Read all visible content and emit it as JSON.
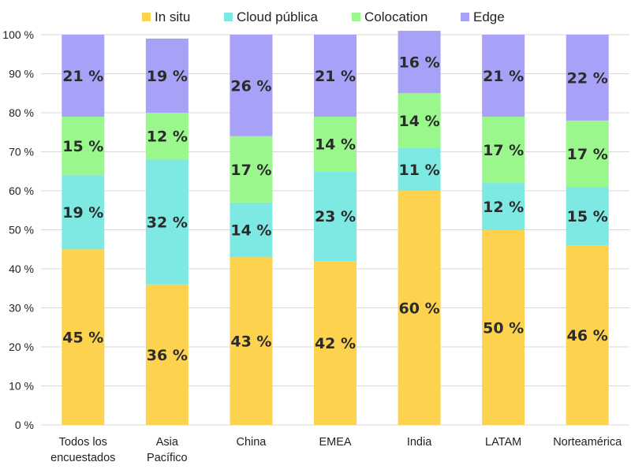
{
  "chart_data": {
    "type": "bar",
    "stacked": true,
    "categories": [
      [
        "Todos los",
        "encuestados"
      ],
      [
        "Asia",
        "Pacífico"
      ],
      [
        "China"
      ],
      [
        "EMEA"
      ],
      [
        "India"
      ],
      [
        "LATAM"
      ],
      [
        "Norteamérica"
      ]
    ],
    "series": [
      {
        "name": "In situ",
        "color": "#fdd24e",
        "values": [
          45,
          36,
          43,
          42,
          60,
          50,
          46
        ],
        "labels": [
          "45 %",
          "36 %",
          "43 %",
          "42 %",
          "60 %",
          "50 %",
          "46 %"
        ]
      },
      {
        "name": "Cloud pública",
        "color": "#7ee9e2",
        "values": [
          19,
          32,
          14,
          23,
          11,
          12,
          15
        ],
        "labels": [
          "19 %",
          "32 %",
          "14 %",
          "23 %",
          "11 %",
          "12 %",
          "15 %"
        ]
      },
      {
        "name": "Colocation",
        "color": "#99f78c",
        "values": [
          15,
          12,
          17,
          14,
          14,
          17,
          17
        ],
        "labels": [
          "15 %",
          "12 %",
          "17 %",
          "14 %",
          "14 %",
          "17 %",
          "17 %"
        ]
      },
      {
        "name": "Edge",
        "color": "#a7a2f7",
        "values": [
          21,
          19,
          26,
          21,
          16,
          21,
          22
        ],
        "labels": [
          "21 %",
          "19 %",
          "26 %",
          "21 %",
          "16 %",
          "21 %",
          "22 %"
        ]
      }
    ],
    "ylim": [
      0,
      100
    ],
    "yticks": [
      "0 %",
      "10 %",
      "20 %",
      "30 %",
      "40 %",
      "50 %",
      "60 %",
      "70 %",
      "80 %",
      "90 %",
      "100 %"
    ],
    "grid": true,
    "legend": "top-center"
  }
}
